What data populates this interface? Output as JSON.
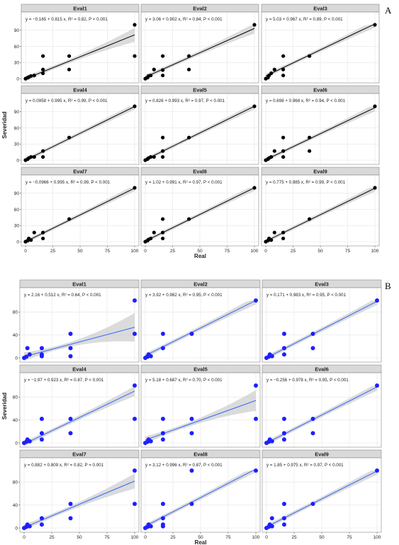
{
  "figure": {
    "panel_letters": [
      "A",
      "B"
    ],
    "x_axis_label": "Real",
    "y_axis_label": "Severidad",
    "colors": {
      "strip_fill": "#d9d9d9",
      "panel_bg": "#ffffff",
      "grid": "#ebebeb",
      "ci_band": "#bdbdbd",
      "A_points": "#000000",
      "A_line": "#000000",
      "B_points": "#1f1fff",
      "B_line": "#3366ff"
    }
  },
  "chart_data": [
    {
      "type": "scatter",
      "letter": "A",
      "xlabel": "Real",
      "ylabel": "Severidad",
      "xlim": [
        0,
        100
      ],
      "ylim": [
        0,
        100
      ],
      "x_ticks": [
        "0",
        "25",
        "50",
        "75",
        "100"
      ],
      "y_ticks": [
        "0",
        "30",
        "60",
        "90"
      ],
      "y_tick_values": [
        0,
        30,
        60,
        90
      ],
      "panels": [
        {
          "title": "Eval1",
          "equation": "y = −0.165 + 0.815 x, R² = 0.82, P < 0.001",
          "intercept": -0.165,
          "slope": 0.815,
          "points": [
            [
              0,
              0
            ],
            [
              2,
              2
            ],
            [
              3,
              3
            ],
            [
              5,
              5
            ],
            [
              8,
              6
            ],
            [
              16,
              42
            ],
            [
              16,
              10
            ],
            [
              16,
              17
            ],
            [
              40,
              42
            ],
            [
              40,
              17
            ],
            [
              100,
              100
            ],
            [
              100,
              42
            ]
          ]
        },
        {
          "title": "Eval2",
          "equation": "y = 3.06 + 0.902 x, R² = 0.84, P < 0.001",
          "intercept": 3.06,
          "slope": 0.902,
          "points": [
            [
              0,
              0
            ],
            [
              2,
              2
            ],
            [
              3,
              5
            ],
            [
              5,
              6
            ],
            [
              8,
              17
            ],
            [
              16,
              42
            ],
            [
              16,
              16
            ],
            [
              16,
              6
            ],
            [
              40,
              42
            ],
            [
              40,
              17
            ],
            [
              100,
              100
            ]
          ]
        },
        {
          "title": "Eval3",
          "equation": "y = 5.03 + 0.967 x, R² = 0.89, P < 0.001",
          "intercept": 5.03,
          "slope": 0.967,
          "points": [
            [
              0,
              0
            ],
            [
              2,
              2
            ],
            [
              3,
              6
            ],
            [
              5,
              10
            ],
            [
              8,
              17
            ],
            [
              16,
              42
            ],
            [
              16,
              17
            ],
            [
              16,
              6
            ],
            [
              40,
              42
            ],
            [
              100,
              100
            ]
          ]
        },
        {
          "title": "Eval4",
          "equation": "y = 0.0958 + 0.995 x, R² = 0.99, P < 0.001",
          "intercept": 0.0958,
          "slope": 0.995,
          "points": [
            [
              0,
              0
            ],
            [
              2,
              2
            ],
            [
              3,
              4
            ],
            [
              5,
              6
            ],
            [
              8,
              6
            ],
            [
              16,
              17
            ],
            [
              16,
              6
            ],
            [
              40,
              42
            ],
            [
              100,
              100
            ]
          ]
        },
        {
          "title": "Eval5",
          "equation": "y = 0.826 + 0.993 x, R² = 0.97, P < 0.001",
          "intercept": 0.826,
          "slope": 0.993,
          "points": [
            [
              0,
              0
            ],
            [
              2,
              2
            ],
            [
              3,
              4
            ],
            [
              5,
              6
            ],
            [
              8,
              6
            ],
            [
              16,
              42
            ],
            [
              16,
              17
            ],
            [
              16,
              6
            ],
            [
              40,
              42
            ],
            [
              100,
              100
            ]
          ]
        },
        {
          "title": "Eval6",
          "equation": "y = 0.698 + 0.968 x, R² = 0.94, P < 0.001",
          "intercept": 0.698,
          "slope": 0.968,
          "points": [
            [
              0,
              0
            ],
            [
              2,
              2
            ],
            [
              3,
              4
            ],
            [
              5,
              6
            ],
            [
              8,
              17
            ],
            [
              16,
              42
            ],
            [
              16,
              17
            ],
            [
              16,
              6
            ],
            [
              40,
              42
            ],
            [
              40,
              17
            ],
            [
              100,
              100
            ]
          ]
        },
        {
          "title": "Eval7",
          "equation": "y = −0.0966 + 0.995 x, R² = 0.99, P < 0.001",
          "intercept": -0.0966,
          "slope": 0.995,
          "points": [
            [
              0,
              0
            ],
            [
              2,
              2
            ],
            [
              3,
              6
            ],
            [
              5,
              3
            ],
            [
              8,
              17
            ],
            [
              16,
              17
            ],
            [
              16,
              6
            ],
            [
              40,
              42
            ],
            [
              100,
              100
            ]
          ]
        },
        {
          "title": "Eval8",
          "equation": "y = 1.02 + 0.991 x, R² = 0.97, P < 0.001",
          "intercept": 1.02,
          "slope": 0.991,
          "points": [
            [
              0,
              0
            ],
            [
              2,
              2
            ],
            [
              3,
              4
            ],
            [
              5,
              6
            ],
            [
              8,
              17
            ],
            [
              16,
              42
            ],
            [
              16,
              17
            ],
            [
              16,
              6
            ],
            [
              40,
              42
            ],
            [
              100,
              100
            ]
          ]
        },
        {
          "title": "Eval9",
          "equation": "y = 0.775 + 0.985 x, R² = 0.99, P < 0.001",
          "intercept": 0.775,
          "slope": 0.985,
          "points": [
            [
              0,
              0
            ],
            [
              2,
              2
            ],
            [
              3,
              6
            ],
            [
              5,
              3
            ],
            [
              8,
              17
            ],
            [
              16,
              17
            ],
            [
              16,
              6
            ],
            [
              40,
              42
            ],
            [
              100,
              100
            ]
          ]
        }
      ]
    },
    {
      "type": "scatter",
      "letter": "B",
      "xlabel": "Real",
      "ylabel": "Severidad",
      "xlim": [
        0,
        100
      ],
      "ylim": [
        0,
        100
      ],
      "x_ticks": [
        "0",
        "25",
        "50",
        "75",
        "100"
      ],
      "y_ticks": [
        "0",
        "40",
        "80"
      ],
      "y_tick_values": [
        0,
        40,
        80
      ],
      "panels": [
        {
          "title": "Eval1",
          "equation": "y = 2.16 + 0.512 x, R² = 0.64, P < 0.001",
          "intercept": 2.16,
          "slope": 0.512,
          "points": [
            [
              0,
              0
            ],
            [
              2,
              2
            ],
            [
              3,
              17
            ],
            [
              5,
              6
            ],
            [
              16,
              17
            ],
            [
              16,
              6
            ],
            [
              16,
              3
            ],
            [
              42,
              42
            ],
            [
              42,
              17
            ],
            [
              42,
              3
            ],
            [
              100,
              100
            ],
            [
              100,
              42
            ]
          ]
        },
        {
          "title": "Eval2",
          "equation": "y = 3.92 + 0.962 x, R² = 0.95, P < 0.001",
          "intercept": 3.92,
          "slope": 0.962,
          "points": [
            [
              0,
              0
            ],
            [
              2,
              2
            ],
            [
              3,
              6
            ],
            [
              5,
              3
            ],
            [
              16,
              42
            ],
            [
              16,
              17
            ],
            [
              42,
              42
            ],
            [
              100,
              100
            ]
          ]
        },
        {
          "title": "Eval3",
          "equation": "y = 0.171 + 0.983 x, R² = 0.95, P < 0.001",
          "intercept": 0.171,
          "slope": 0.983,
          "points": [
            [
              0,
              0
            ],
            [
              2,
              2
            ],
            [
              3,
              6
            ],
            [
              5,
              3
            ],
            [
              16,
              42
            ],
            [
              16,
              17
            ],
            [
              16,
              6
            ],
            [
              42,
              42
            ],
            [
              42,
              17
            ],
            [
              100,
              100
            ]
          ]
        },
        {
          "title": "Eval4",
          "equation": "y = −1.97 + 0.923 x, R² = 0.87, P < 0.001",
          "intercept": -1.97,
          "slope": 0.923,
          "points": [
            [
              0,
              0
            ],
            [
              2,
              2
            ],
            [
              3,
              6
            ],
            [
              5,
              3
            ],
            [
              16,
              42
            ],
            [
              16,
              17
            ],
            [
              16,
              6
            ],
            [
              42,
              42
            ],
            [
              42,
              17
            ],
            [
              100,
              100
            ],
            [
              100,
              42
            ]
          ]
        },
        {
          "title": "Eval5",
          "equation": "y = 5.18 + 0.687 x, R² = 0.70, P < 0.001",
          "intercept": 5.18,
          "slope": 0.687,
          "points": [
            [
              0,
              0
            ],
            [
              2,
              2
            ],
            [
              3,
              6
            ],
            [
              5,
              3
            ],
            [
              16,
              42
            ],
            [
              16,
              17
            ],
            [
              16,
              6
            ],
            [
              42,
              42
            ],
            [
              42,
              17
            ],
            [
              100,
              100
            ],
            [
              100,
              42
            ]
          ]
        },
        {
          "title": "Eval6",
          "equation": "y = −0.256 + 0.978 x, R² = 0.95, P < 0.001",
          "intercept": -0.256,
          "slope": 0.978,
          "points": [
            [
              0,
              0
            ],
            [
              2,
              2
            ],
            [
              3,
              6
            ],
            [
              5,
              3
            ],
            [
              16,
              42
            ],
            [
              16,
              17
            ],
            [
              16,
              6
            ],
            [
              42,
              42
            ],
            [
              42,
              17
            ],
            [
              100,
              100
            ]
          ]
        },
        {
          "title": "Eval7",
          "equation": "y = 0.882 + 0.809 x, R² = 0.82, P = 0.001",
          "intercept": 0.882,
          "slope": 0.809,
          "points": [
            [
              0,
              0
            ],
            [
              2,
              2
            ],
            [
              3,
              6
            ],
            [
              5,
              3
            ],
            [
              16,
              17
            ],
            [
              16,
              6
            ],
            [
              42,
              42
            ],
            [
              42,
              17
            ],
            [
              100,
              100
            ],
            [
              100,
              42
            ]
          ]
        },
        {
          "title": "Eval8",
          "equation": "y = 3.12 + 0.996 x, R² = 0.87, P < 0.001",
          "intercept": 3.12,
          "slope": 0.996,
          "points": [
            [
              0,
              0
            ],
            [
              2,
              2
            ],
            [
              3,
              6
            ],
            [
              5,
              3
            ],
            [
              16,
              42
            ],
            [
              16,
              17
            ],
            [
              16,
              6
            ],
            [
              16,
              3
            ],
            [
              42,
              100
            ],
            [
              42,
              42
            ],
            [
              100,
              100
            ]
          ]
        },
        {
          "title": "Eval9",
          "equation": "y = 1.85 + 0.975 x, R² = 0.97, P < 0.001",
          "intercept": 1.85,
          "slope": 0.975,
          "points": [
            [
              0,
              0
            ],
            [
              2,
              2
            ],
            [
              3,
              6
            ],
            [
              5,
              3
            ],
            [
              5,
              17
            ],
            [
              16,
              42
            ],
            [
              16,
              17
            ],
            [
              16,
              6
            ],
            [
              42,
              42
            ],
            [
              100,
              100
            ]
          ]
        }
      ]
    }
  ]
}
